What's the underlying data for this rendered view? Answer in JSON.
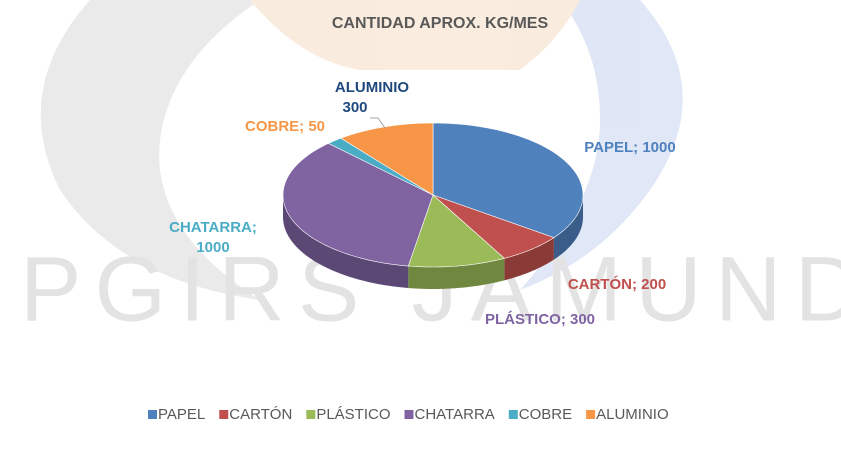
{
  "chart_data": {
    "type": "pie3d",
    "title": "CANTIDAD APROX. KG/MES",
    "watermark": "PGIRS JAMUNDÍ",
    "categories": [
      "PAPEL",
      "CARTÓN",
      "PLÁSTICO",
      "CHATARRA",
      "COBRE",
      "ALUMINIO"
    ],
    "series": [
      {
        "name": "CANTIDAD APROX. KG/MES",
        "values": [
          1000,
          200,
          300,
          1000,
          50,
          300
        ],
        "value_labels": [
          "PAPEL; 1000",
          "CARTÓN; 200",
          "PLÁSTICO; 300",
          "CHATARRA; 1000",
          "COBRE; 50",
          "ALUMINIO 300"
        ]
      }
    ],
    "colors": [
      "#4f81bd",
      "#c0504d",
      "#9bbb59",
      "#8064a2",
      "#4bacc6",
      "#f79646"
    ],
    "label_colors": [
      "#4f81bd",
      "#c0504d",
      "#8064a2",
      "#4bacc6",
      "#f79646",
      "#1f497d"
    ],
    "legend": "bottom"
  }
}
